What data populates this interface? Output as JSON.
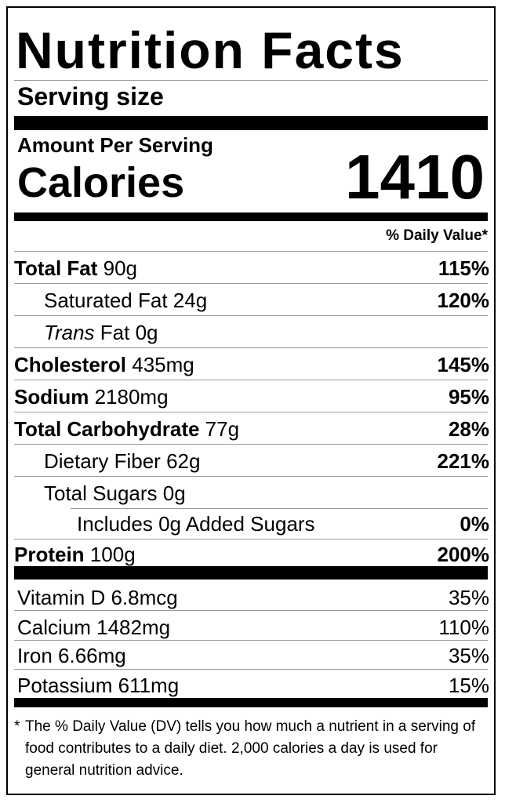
{
  "title": "Nutrition Facts",
  "serving_size_label": "Serving size",
  "amount_per_serving": "Amount Per Serving",
  "calories_label": "Calories",
  "calories_value": "1410",
  "daily_value_header": "% Daily Value*",
  "nutrients": {
    "total_fat": {
      "name": "Total Fat",
      "amount": "90g",
      "dv": "115%"
    },
    "saturated_fat": {
      "name": "Saturated Fat",
      "amount": "24g",
      "dv": "120%"
    },
    "trans_fat": {
      "name_italic": "Trans",
      "name": "Fat",
      "amount": "0g"
    },
    "cholesterol": {
      "name": "Cholesterol",
      "amount": "435mg",
      "dv": "145%"
    },
    "sodium": {
      "name": "Sodium",
      "amount": "2180mg",
      "dv": "95%"
    },
    "total_carbohydrate": {
      "name": "Total Carbohydrate",
      "amount": "77g",
      "dv": "28%"
    },
    "dietary_fiber": {
      "name": "Dietary Fiber",
      "amount": "62g",
      "dv": "221%"
    },
    "total_sugars": {
      "name": "Total Sugars",
      "amount": "0g"
    },
    "added_sugars": {
      "name": "Includes 0g Added Sugars",
      "dv": "0%"
    },
    "protein": {
      "name": "Protein",
      "amount": "100g",
      "dv": "200%"
    }
  },
  "vitamins": [
    {
      "text": "Vitamin D 6.8mcg",
      "dv": "35%"
    },
    {
      "text": "Calcium 1482mg",
      "dv": "110%"
    },
    {
      "text": "Iron 6.66mg",
      "dv": "35%"
    },
    {
      "text": "Potassium 611mg",
      "dv": "15%"
    }
  ],
  "footnote_star": "*",
  "footnote": "The % Daily Value (DV) tells you how much a nutrient in a serving of food contributes to a daily diet. 2,000 calories a day is used for general nutrition advice."
}
